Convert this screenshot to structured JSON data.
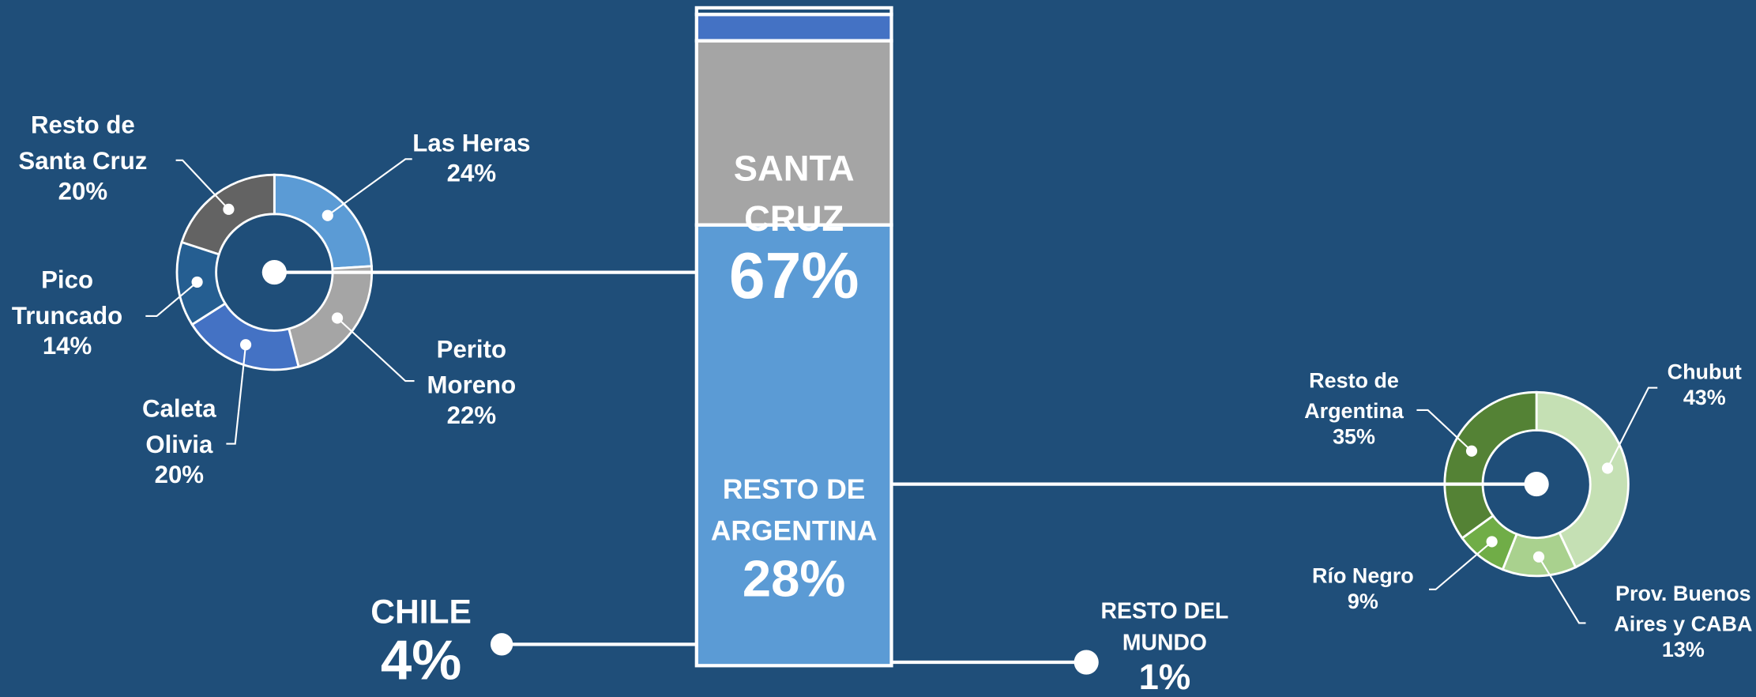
{
  "chart_data": [
    {
      "type": "bar",
      "categories": [
        "SANTA CRUZ",
        "RESTO DE ARGENTINA",
        "CHILE",
        "RESTO DEL MUNDO"
      ],
      "values": [
        67,
        28,
        4,
        1
      ],
      "value_labels": [
        "67%",
        "28%",
        "4%",
        "1%"
      ],
      "colors": [
        "#5b9bd5",
        "#a5a5a5",
        "#4472c4",
        "#1f4e79"
      ],
      "ylim": [
        0,
        100
      ]
    },
    {
      "type": "donut",
      "categories": [
        "Las Heras",
        "Perito Moreno",
        "Caleta Olivia",
        "Pico Truncado",
        "Resto de Santa Cruz"
      ],
      "values": [
        24,
        22,
        20,
        14,
        20
      ],
      "value_labels": [
        "24%",
        "22%",
        "20%",
        "14%",
        "20%"
      ],
      "colors": [
        "#5b9bd5",
        "#a5a5a5",
        "#4472c4",
        "#255e91",
        "#636363"
      ]
    },
    {
      "type": "donut",
      "categories": [
        "Chubut",
        "Prov. Buenos Aires y CABA",
        "Río Negro",
        "Resto de Argentina"
      ],
      "values": [
        43,
        13,
        9,
        35
      ],
      "value_labels": [
        "43%",
        "13%",
        "9%",
        "35%"
      ],
      "colors": [
        "#c5e0b4",
        "#a9d18e",
        "#70ad47",
        "#548235"
      ]
    }
  ]
}
